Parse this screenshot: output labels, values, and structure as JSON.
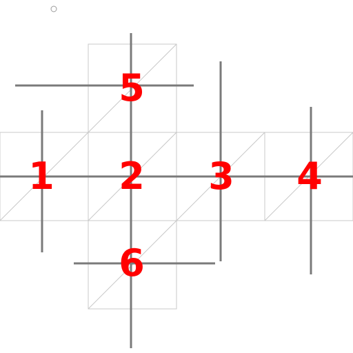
{
  "diagram": {
    "colors": {
      "label": "#ff0000",
      "axis": "#7a7a7a",
      "grid": "#c8c8c8"
    },
    "faces": [
      {
        "id": "face-1",
        "label": "1"
      },
      {
        "id": "face-2",
        "label": "2"
      },
      {
        "id": "face-3",
        "label": "3"
      },
      {
        "id": "face-4",
        "label": "4"
      },
      {
        "id": "face-5",
        "label": "5"
      },
      {
        "id": "face-6",
        "label": "6"
      }
    ]
  }
}
